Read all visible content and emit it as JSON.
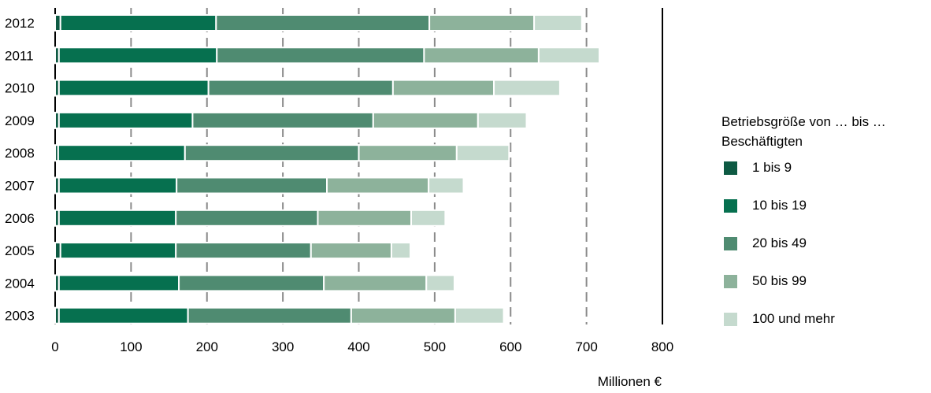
{
  "chart_data": {
    "type": "bar",
    "orientation": "horizontal",
    "stacked": true,
    "categories": [
      "2012",
      "2011",
      "2010",
      "2009",
      "2008",
      "2007",
      "2006",
      "2005",
      "2004",
      "2003"
    ],
    "series": [
      {
        "name": "1 bis 9",
        "color": "#0e5a43",
        "values": [
          7,
          5,
          5,
          5,
          4,
          5,
          5,
          7,
          5,
          5
        ]
      },
      {
        "name": "10 bis 19",
        "color": "#06704f",
        "values": [
          205,
          208,
          197,
          176,
          167,
          155,
          154,
          152,
          158,
          170
        ]
      },
      {
        "name": "20 bis 49",
        "color": "#4f8b71",
        "values": [
          281,
          273,
          243,
          238,
          229,
          198,
          187,
          178,
          191,
          215
        ]
      },
      {
        "name": "50 bis 99",
        "color": "#8db29b",
        "values": [
          138,
          151,
          133,
          138,
          129,
          134,
          123,
          106,
          135,
          137
        ]
      },
      {
        "name": "100 und mehr",
        "color": "#c5dace",
        "values": [
          63,
          80,
          87,
          64,
          69,
          46,
          45,
          25,
          37,
          64
        ]
      }
    ],
    "xlim": [
      0,
      800
    ],
    "xticks": [
      "0",
      "100",
      "200",
      "300",
      "400",
      "500",
      "600",
      "700",
      "800"
    ],
    "xlabel": "Millionen €",
    "ylabel": "",
    "grid": "vertical dashed",
    "legend": {
      "title": "Betriebsgröße von … bis … Beschäftigten",
      "position": "right"
    }
  }
}
